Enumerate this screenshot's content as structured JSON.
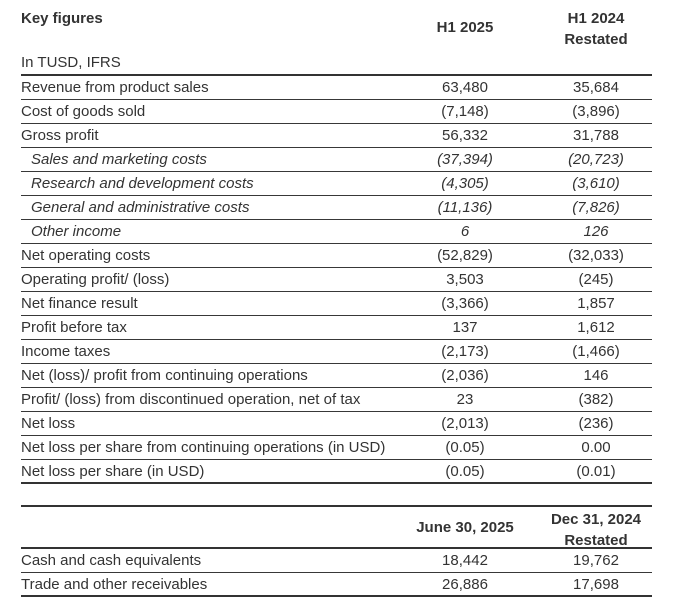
{
  "colors": {
    "text": "#333333",
    "rule": "#333333",
    "background": "#ffffff"
  },
  "income_statement": {
    "title": "Key figures",
    "units_note": "In TUSD, IFRS",
    "col1_header": "H1 2025",
    "col2_header_line1": "H1 2024",
    "col2_header_line2": "Restated",
    "rows": [
      {
        "label": "Revenue from product sales",
        "v1": "63,480",
        "v2": "35,684",
        "italic": false
      },
      {
        "label": "Cost of goods sold",
        "v1": "(7,148)",
        "v2": "(3,896)",
        "italic": false
      },
      {
        "label": "Gross profit",
        "v1": "56,332",
        "v2": "31,788",
        "italic": false
      },
      {
        "label": "Sales and marketing costs",
        "v1": "(37,394)",
        "v2": "(20,723)",
        "italic": true
      },
      {
        "label": "Research and development costs",
        "v1": "(4,305)",
        "v2": "(3,610)",
        "italic": true
      },
      {
        "label": "General and administrative costs",
        "v1": "(11,136)",
        "v2": "(7,826)",
        "italic": true
      },
      {
        "label": "Other income",
        "v1": "6",
        "v2": "126",
        "italic": true
      },
      {
        "label": "Net operating costs",
        "v1": "(52,829)",
        "v2": "(32,033)",
        "italic": false
      },
      {
        "label": "Operating profit/ (loss)",
        "v1": "3,503",
        "v2": "(245)",
        "italic": false
      },
      {
        "label": "Net finance result",
        "v1": "(3,366)",
        "v2": "1,857",
        "italic": false
      },
      {
        "label": "Profit before tax",
        "v1": "137",
        "v2": "1,612",
        "italic": false
      },
      {
        "label": "Income taxes",
        "v1": "(2,173)",
        "v2": "(1,466)",
        "italic": false
      },
      {
        "label": "Net (loss)/ profit from continuing operations",
        "v1": "(2,036)",
        "v2": "146",
        "italic": false
      },
      {
        "label": "Profit/ (loss) from discontinued operation, net of tax",
        "v1": "23",
        "v2": "(382)",
        "italic": false
      },
      {
        "label": "Net loss",
        "v1": "(2,013)",
        "v2": "(236)",
        "italic": false
      },
      {
        "label": "Net loss per share from continuing operations (in USD)",
        "v1": "(0.05)",
        "v2": "0.00",
        "italic": false
      },
      {
        "label": "Net loss per share (in USD)",
        "v1": "(0.05)",
        "v2": "(0.01)",
        "italic": false
      }
    ]
  },
  "balance_sheet": {
    "col1_header": "June 30, 2025",
    "col2_header_line1": "Dec 31, 2024",
    "col2_header_line2": "Restated",
    "rows": [
      {
        "label": "Cash and cash equivalents",
        "v1": "18,442",
        "v2": "19,762",
        "italic": false
      },
      {
        "label": "Trade and other receivables",
        "v1": "26,886",
        "v2": "17,698",
        "italic": false
      }
    ]
  }
}
